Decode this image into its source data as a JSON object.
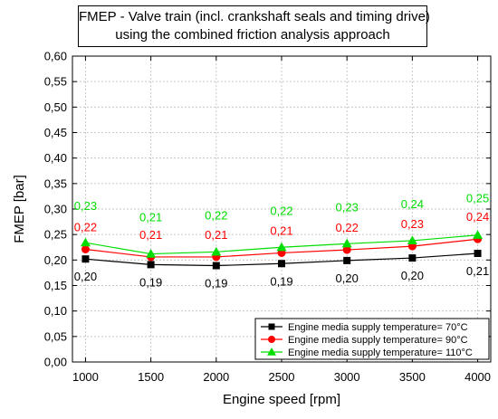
{
  "chart_data": {
    "type": "line",
    "title": [
      "FMEP - Valve train (incl. crankshaft seals and timing drive)",
      "using the combined friction analysis approach"
    ],
    "xlabel": "Engine speed [rpm]",
    "ylabel": "FMEP [bar]",
    "x": [
      1000,
      1500,
      2000,
      2500,
      3000,
      3500,
      4000
    ],
    "xlim": [
      900,
      4100
    ],
    "ylim": [
      0.0,
      0.6
    ],
    "xticks": [
      "1000",
      "1500",
      "2000",
      "2500",
      "3000",
      "3500",
      "4000"
    ],
    "yticks": [
      "0,00",
      "0,05",
      "0,10",
      "0,15",
      "0,20",
      "0,25",
      "0,30",
      "0,35",
      "0,40",
      "0,45",
      "0,50",
      "0,55",
      "0,60"
    ],
    "grid": true,
    "legend_position": "bottom-right",
    "series": [
      {
        "name": "Engine media supply temperature= 70°C",
        "color": "#000000",
        "marker": "square",
        "values": [
          0.202,
          0.191,
          0.189,
          0.193,
          0.199,
          0.204,
          0.213
        ],
        "labels": [
          "0,20",
          "0,19",
          "0,19",
          "0,19",
          "0,20",
          "0,20",
          "0,21"
        ]
      },
      {
        "name": "Engine media supply temperature= 90°C",
        "color": "#ff0000",
        "marker": "circle",
        "values": [
          0.221,
          0.206,
          0.206,
          0.214,
          0.22,
          0.227,
          0.241
        ],
        "labels": [
          "0,22",
          "0,21",
          "0,21",
          "0,21",
          "0,22",
          "0,23",
          "0,24"
        ]
      },
      {
        "name": "Engine media supply temperature= 110°C",
        "color": "#00dd00",
        "marker": "triangle",
        "values": [
          0.234,
          0.212,
          0.216,
          0.225,
          0.232,
          0.238,
          0.249
        ],
        "labels": [
          "0,23",
          "0,21",
          "0,22",
          "0,22",
          "0,23",
          "0,24",
          "0,25"
        ]
      }
    ]
  }
}
